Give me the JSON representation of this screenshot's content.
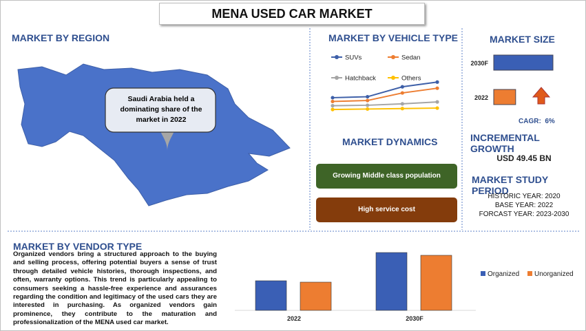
{
  "header": {
    "title": "MENA USED CAR MARKET"
  },
  "region": {
    "heading": "MARKET BY REGION",
    "callout": "Saudi Arabia held a dominating share of the market in 2022"
  },
  "vehicle": {
    "heading": "MARKET BY VEHICLE TYPE"
  },
  "dynamics": {
    "heading": "MARKET DYNAMICS",
    "items": [
      "Growing Middle class population",
      "High service cost"
    ]
  },
  "size": {
    "heading": "MARKET SIZE",
    "cagr": "CAGR:  6%",
    "growth_heading": "INCREMENTAL GROWTH",
    "growth_value": "USD 49.45 BN",
    "period_heading": "MARKET STUDY PERIOD",
    "period": [
      "HISTORIC YEAR: 2020",
      "BASE YEAR: 2022",
      "FORCAST YEAR: 2023-2030"
    ]
  },
  "vendor": {
    "heading": "MARKET BY VENDOR TYPE",
    "text": "Organized vendors bring a structured approach to the buying and selling process, offering potential buyers a sense of trust through detailed vehicle histories, thorough inspections, and often, warranty options. This trend is particularly appealing to consumers seeking a hassle-free experience and assurances regarding the condition and legitimacy of the used cars they are interested in purchasing. As organized vendors gain prominence, they contribute to the maturation and professionalization of the MENA used car market."
  },
  "chart_data": [
    {
      "type": "line",
      "categories": [
        null,
        null,
        null,
        null
      ],
      "ylim": [
        0,
        8
      ],
      "series": [
        {
          "name": "SUVs",
          "color": "#3d5fa8",
          "values": [
            3.5,
            3.7,
            5.8,
            6.8
          ]
        },
        {
          "name": "Sedan",
          "color": "#ed7d31",
          "values": [
            2.7,
            2.9,
            4.5,
            5.5
          ]
        },
        {
          "name": "Hatchback",
          "color": "#a5a5a5",
          "values": [
            1.8,
            1.9,
            2.2,
            2.6
          ]
        },
        {
          "name": "Others",
          "color": "#ffc000",
          "values": [
            1,
            1.1,
            1.2,
            1.3
          ]
        }
      ]
    },
    {
      "type": "hbar",
      "categories": [
        "2030F",
        "2022"
      ],
      "values": [
        100,
        37
      ],
      "colors": [
        "#3a5fb5",
        "#ed7d31"
      ],
      "xlim": [
        0,
        100
      ]
    },
    {
      "type": "bar",
      "categories": [
        "2022",
        "2030F"
      ],
      "ylim": [
        0,
        90
      ],
      "series": [
        {
          "name": "Organized",
          "color": "#3a5fb5",
          "values": [
            43,
            84
          ]
        },
        {
          "name": "Unorganized",
          "color": "#ed7d31",
          "values": [
            41,
            80
          ]
        }
      ]
    }
  ]
}
